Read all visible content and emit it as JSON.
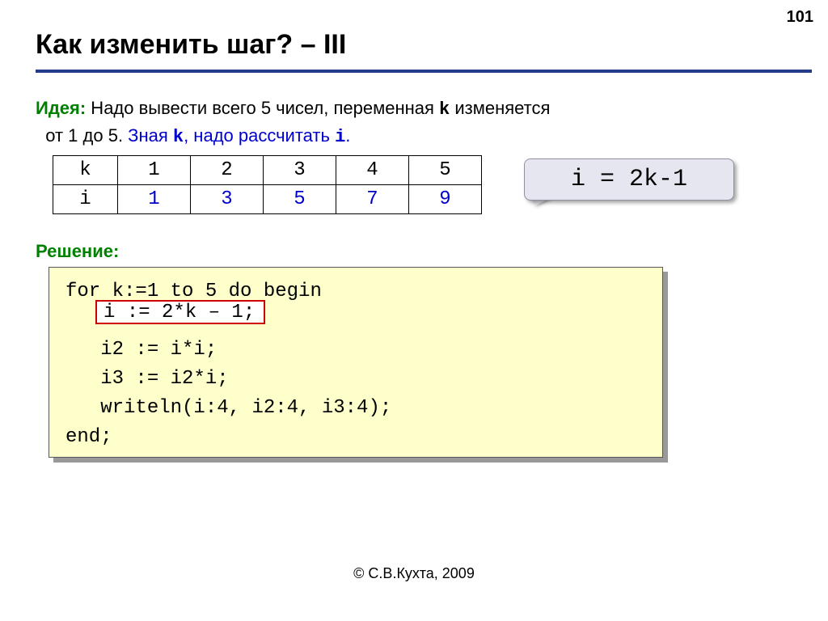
{
  "page_number": "101",
  "title": "Как изменить шаг? – III",
  "idea": {
    "label": "Идея:",
    "text_part1": " Надо вывести всего 5 чисел, переменная ",
    "var_k": "k",
    "text_part2": " изменяется",
    "line2_prefix": "от 1 до 5. ",
    "blue_part": "Зная ",
    "var_k2": "k",
    "blue_part2": ", надо рассчитать ",
    "var_i": "i",
    "blue_part3": "."
  },
  "table": {
    "header_row": [
      "k",
      "1",
      "2",
      "3",
      "4",
      "5"
    ],
    "data_row": [
      "i",
      "1",
      "3",
      "5",
      "7",
      "9"
    ]
  },
  "callout": "i = 2k-1",
  "solution_label": "Решение:",
  "code": {
    "line1": "for k:=1 to 5 do begin",
    "line2_highlight": "i := 2*k – 1;",
    "line3": "   i2 := i*i;",
    "line4": "   i3 := i2*i;",
    "line5": "   writeln(i:4, i2:4, i3:4);",
    "line6": "end;"
  },
  "copyright": "© С.В.Кухта, 2009"
}
